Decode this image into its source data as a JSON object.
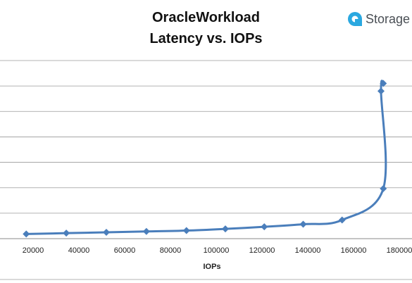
{
  "header": {
    "title_line1": "OracleWorkload",
    "title_line2": "Latency vs. IOPs"
  },
  "logo": {
    "text": "Storage",
    "icon": "storagereview-logo-icon",
    "color": "#2aa8e0"
  },
  "chart_data": {
    "type": "line",
    "title": "OracleWorkload Latency vs. IOPs",
    "xlabel": "IOPs",
    "ylabel": "",
    "xlim": [
      10000,
      180000
    ],
    "x_ticks": [
      20000,
      40000,
      60000,
      80000,
      100000,
      120000,
      140000,
      160000,
      180000
    ],
    "y_tick_labels_visible": false,
    "y_gridlines": 7,
    "grid": "horizontal",
    "line_color": "#4a7ebb",
    "series": [
      {
        "points": [
          [
            17000,
            0.55
          ],
          [
            34500,
            0.65
          ],
          [
            52000,
            0.75
          ],
          [
            69500,
            0.85
          ],
          [
            87000,
            0.95
          ],
          [
            104000,
            1.15
          ],
          [
            121000,
            1.4
          ],
          [
            138000,
            1.7
          ],
          [
            155000,
            2.2
          ],
          [
            173000,
            5.9
          ],
          [
            172000,
            17.4
          ],
          [
            173000,
            18.3
          ]
        ]
      }
    ]
  }
}
